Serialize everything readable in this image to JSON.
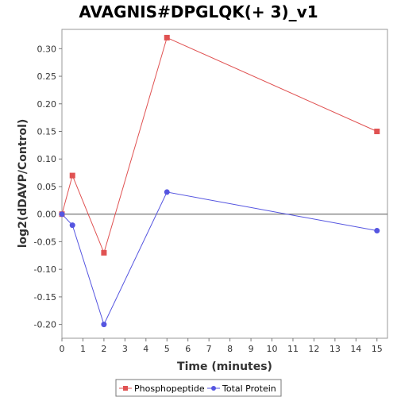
{
  "chart_data": {
    "type": "line",
    "title": "AVAGNIS#DPGLQK(+ 3)_v1",
    "xlabel": "Time (minutes)",
    "ylabel": "log2(dDAVP/Control)",
    "xlim": [
      0,
      15.5
    ],
    "ylim": [
      -0.225,
      0.335
    ],
    "xticks": [
      0,
      1,
      2,
      3,
      4,
      5,
      6,
      7,
      8,
      9,
      10,
      11,
      12,
      13,
      14,
      15
    ],
    "yticks": [
      -0.2,
      -0.15,
      -0.1,
      -0.05,
      0.0,
      0.05,
      0.1,
      0.15,
      0.2,
      0.25,
      0.3
    ],
    "ytick_labels": [
      "-0.20",
      "-0.15",
      "-0.10",
      "-0.05",
      "0.00",
      "0.05",
      "0.10",
      "0.15",
      "0.20",
      "0.25",
      "0.30"
    ],
    "zero_line": true,
    "grid": false,
    "legend_position": "bottom",
    "series": [
      {
        "name": "Phosphopeptide",
        "marker": "square",
        "color": "#e05252",
        "x": [
          0,
          0.5,
          2,
          5,
          15
        ],
        "y": [
          0.0,
          0.07,
          -0.07,
          0.32,
          0.15
        ]
      },
      {
        "name": "Total Protein",
        "marker": "circle",
        "color": "#5555e0",
        "x": [
          0,
          0.5,
          2,
          5,
          15
        ],
        "y": [
          0.0,
          -0.02,
          -0.2,
          0.04,
          -0.03
        ]
      }
    ]
  }
}
